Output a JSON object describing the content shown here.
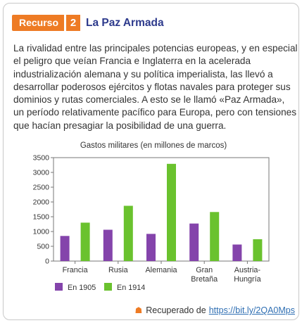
{
  "header": {
    "badge": "Recurso",
    "number": "2",
    "title": "La Paz Armada"
  },
  "paragraph": "La rivalidad entre las principales potencias europeas, y en especial el peligro que veían Francia e Inglaterra en la acelerada industrialización alemana y su política imperialista, las llevó a desarrollar poderosos ejércitos y flotas navales para proteger sus dominios y rutas comerciales. A esto se le llamó «Paz Armada», un período relativamente pacífico para Europa, pero con tensiones que hacían presagiar la posibilidad de una guerra.",
  "chart_data": {
    "type": "bar",
    "title": "Gastos militares (en millones de marcos)",
    "categories": [
      [
        "Francia"
      ],
      [
        "Rusia"
      ],
      [
        "Alemania"
      ],
      [
        "Gran",
        "Bretaña"
      ],
      [
        "Austria-",
        "Hungría"
      ]
    ],
    "series": [
      {
        "name": "En 1905",
        "color": "#8444ab",
        "values": [
          850,
          1060,
          920,
          1270,
          560
        ]
      },
      {
        "name": "En 1914",
        "color": "#6ac22e",
        "values": [
          1300,
          1870,
          3290,
          1660,
          740
        ]
      }
    ],
    "ylim": [
      0,
      3500
    ],
    "yticks": [
      0,
      500,
      1000,
      1500,
      2000,
      2500,
      3000,
      3500
    ],
    "grid": false,
    "legend": "bottom-left"
  },
  "source": {
    "label": "Recuperado de",
    "link": "https://bit.ly/2QA0Mps"
  },
  "icons": {
    "source": "house-icon"
  }
}
